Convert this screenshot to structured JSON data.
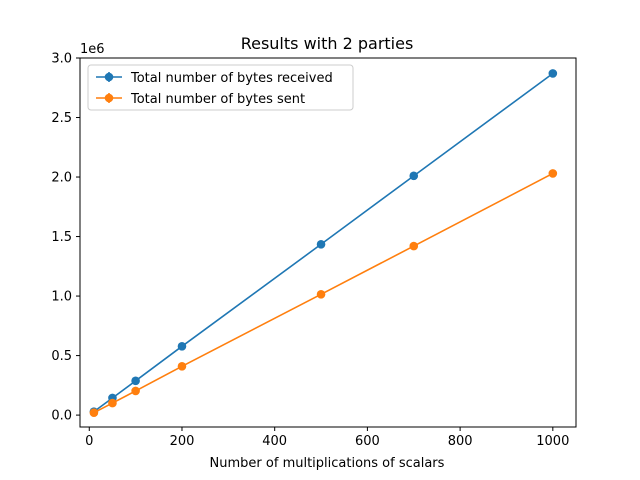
{
  "chart_data": {
    "type": "line",
    "title": "Results with 2 parties",
    "xlabel": "Number of multiplications of scalars",
    "ylabel": "",
    "y_offset_label": "1e6",
    "xlim": [
      -20,
      1050
    ],
    "ylim": [
      -0.1,
      3.0
    ],
    "xticks": [
      0,
      200,
      400,
      600,
      800,
      1000
    ],
    "yticks": [
      0.0,
      0.5,
      1.0,
      1.5,
      2.0,
      2.5,
      3.0
    ],
    "ytick_labels": [
      "0.0",
      "0.5",
      "1.0",
      "1.5",
      "2.0",
      "2.5",
      "3.0"
    ],
    "legend_position": "upper-left",
    "grid": false,
    "x": [
      10,
      50,
      100,
      200,
      500,
      700,
      1000
    ],
    "series": [
      {
        "name": "Total number of bytes received",
        "color": "#1f77b4",
        "values": [
          0.029,
          0.144,
          0.288,
          0.578,
          1.435,
          2.01,
          2.87
        ]
      },
      {
        "name": "Total number of bytes sent",
        "color": "#ff7f0e",
        "values": [
          0.02,
          0.101,
          0.203,
          0.41,
          1.015,
          1.42,
          2.03
        ]
      }
    ]
  }
}
